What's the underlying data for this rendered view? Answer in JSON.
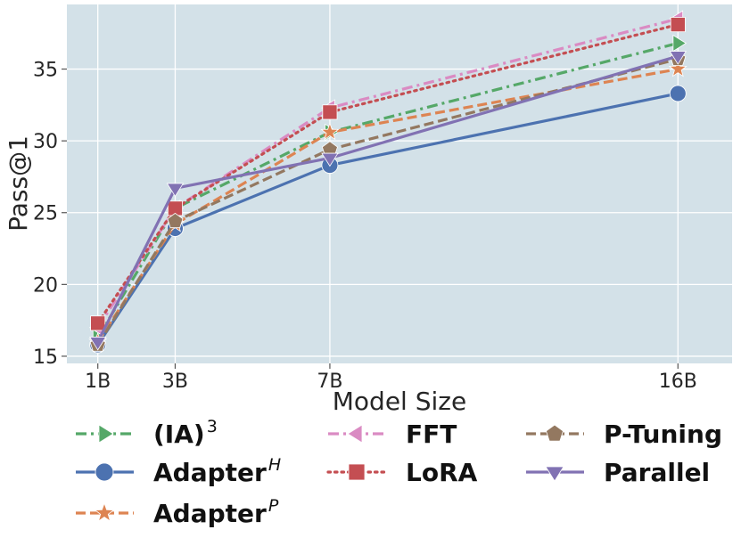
{
  "chart_data": {
    "type": "line",
    "title": "",
    "xlabel": "Model Size",
    "ylabel": "Pass@1",
    "x": [
      1,
      3,
      7,
      16
    ],
    "x_tick_labels": [
      "1B",
      "3B",
      "7B",
      "16B"
    ],
    "xlim": [
      0.2,
      17.4
    ],
    "ylim": [
      14.5,
      39.5
    ],
    "y_ticks": [
      15,
      20,
      25,
      30,
      35
    ],
    "y_tick_labels": [
      "15",
      "20",
      "25",
      "30",
      "35"
    ],
    "grid": true,
    "legend_position": "bottom",
    "series": [
      {
        "name": "(IA)",
        "sup": "3",
        "sup_italic": false,
        "values": [
          16.3,
          25.3,
          30.6,
          36.8
        ],
        "color": "#55a868",
        "dash": "dashdot",
        "marker": "triangle-right"
      },
      {
        "name": "Adapter",
        "sup": "H",
        "sup_italic": true,
        "values": [
          15.8,
          23.9,
          28.3,
          33.3
        ],
        "color": "#4c72b0",
        "dash": "solid",
        "marker": "circle"
      },
      {
        "name": "Adapter",
        "sup": "P",
        "sup_italic": true,
        "values": [
          16.0,
          24.2,
          30.6,
          35.0
        ],
        "color": "#dd8452",
        "dash": "dashed",
        "marker": "star"
      },
      {
        "name": "FFT",
        "sup": "",
        "sup_italic": false,
        "values": [
          17.0,
          25.3,
          32.3,
          38.5
        ],
        "color": "#da8bc3",
        "dash": "dashdot",
        "marker": "triangle-left"
      },
      {
        "name": "LoRA",
        "sup": "",
        "sup_italic": false,
        "values": [
          17.3,
          25.3,
          32.0,
          38.1
        ],
        "color": "#c44e52",
        "dash": "dotted",
        "marker": "square"
      },
      {
        "name": "P-Tuning",
        "sup": "",
        "sup_italic": false,
        "values": [
          15.8,
          24.4,
          29.4,
          35.7
        ],
        "color": "#937860",
        "dash": "dashed",
        "marker": "pentagon"
      },
      {
        "name": "Parallel",
        "sup": "",
        "sup_italic": false,
        "values": [
          16.0,
          26.7,
          28.8,
          35.9
        ],
        "color": "#8172b3",
        "dash": "solid",
        "marker": "triangle-down"
      }
    ],
    "legend_order": [
      0,
      1,
      2,
      3,
      4,
      5,
      6
    ]
  }
}
